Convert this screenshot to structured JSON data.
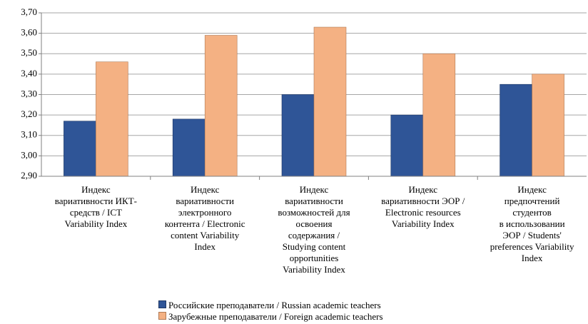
{
  "chart_data": {
    "type": "bar",
    "categories": [
      "Индекс\nвариативности  ИКТ-\nсредств / ICT\nVariability Index",
      "Индекс\nвариативности\nэлектронного\nконтента / Electronic\ncontent Variability\nIndex",
      "Индекс\nвариативности\nвозможностей для\nосвоения\nсодержания /\nStudying content\nopportunities\nVariability Index",
      "Индекс\nвариативности ЭОР /\nElectronic resources\nVariability Index",
      "Индекс\nпредпочтений\nстудентов\nв использовании\nЭОР / Students'\npreferences Variability\nIndex"
    ],
    "series": [
      {
        "name": "Российские преподаватели / Russian academic teachers",
        "color": "#2f5597",
        "values": [
          3.17,
          3.18,
          3.3,
          3.2,
          3.35
        ]
      },
      {
        "name": "Зарубежные преподаватели / Foreign academic teachers",
        "color": "#f4b183",
        "values": [
          3.46,
          3.59,
          3.63,
          3.5,
          3.4
        ]
      }
    ],
    "ylim": [
      2.9,
      3.7
    ],
    "yticks": [
      {
        "value": 2.9,
        "label": "2,90"
      },
      {
        "value": 3.0,
        "label": "3,00"
      },
      {
        "value": 3.1,
        "label": "3,10"
      },
      {
        "value": 3.2,
        "label": "3,20"
      },
      {
        "value": 3.3,
        "label": "3,30"
      },
      {
        "value": 3.4,
        "label": "3,40"
      },
      {
        "value": 3.5,
        "label": "3,50"
      },
      {
        "value": 3.6,
        "label": "3,60"
      },
      {
        "value": 3.7,
        "label": "3,70"
      }
    ],
    "grid": true,
    "legend": "bottom"
  }
}
